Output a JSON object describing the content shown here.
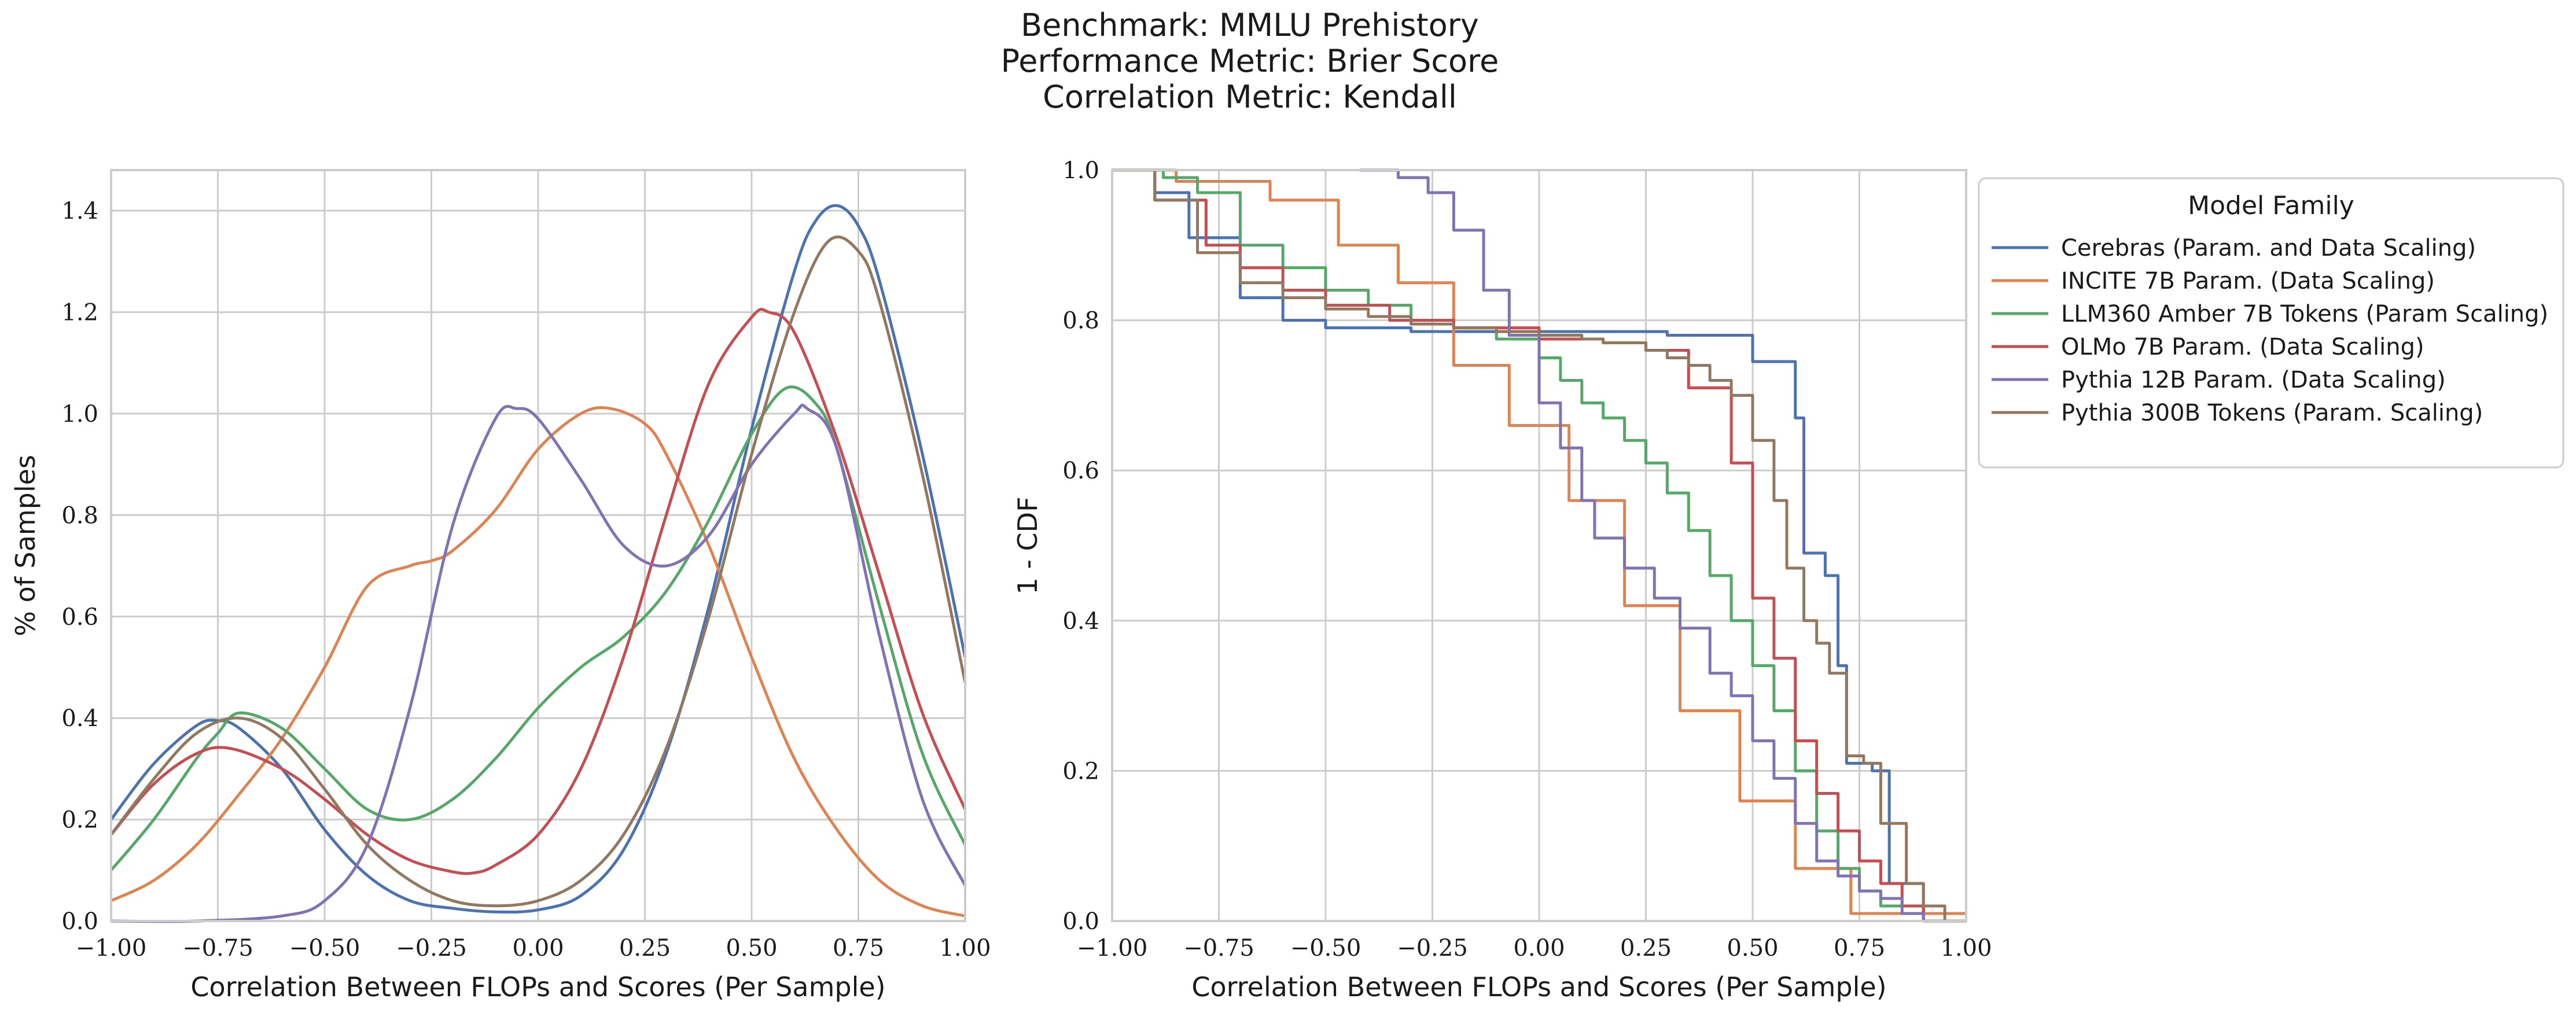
{
  "title_lines": [
    "Benchmark: MMLU Prehistory",
    "Performance Metric: Brier Score",
    "Correlation Metric: Kendall"
  ],
  "chart_data": [
    {
      "type": "line",
      "xlabel": "Correlation Between FLOPs and Scores (Per Sample)",
      "ylabel": "% of Samples",
      "xlim": [
        -1.0,
        1.0
      ],
      "ylim": [
        0.0,
        1.48
      ],
      "xticks": [
        "−1.00",
        "−0.75",
        "−0.50",
        "−0.25",
        "0.00",
        "0.25",
        "0.50",
        "0.75",
        "1.00"
      ],
      "yticks": [
        "0.0",
        "0.2",
        "0.4",
        "0.6",
        "0.8",
        "1.0",
        "1.2",
        "1.4"
      ],
      "grid": true,
      "series": [
        {
          "name": "Cerebras (Param. and Data Scaling)",
          "color": "#4c72b0",
          "x": [
            -1.0,
            -0.9,
            -0.8,
            -0.75,
            -0.7,
            -0.6,
            -0.5,
            -0.4,
            -0.3,
            -0.2,
            -0.1,
            0.0,
            0.1,
            0.2,
            0.3,
            0.4,
            0.5,
            0.6,
            0.65,
            0.7,
            0.75,
            0.8,
            0.9,
            1.0
          ],
          "y": [
            0.2,
            0.31,
            0.385,
            0.395,
            0.38,
            0.3,
            0.18,
            0.09,
            0.04,
            0.025,
            0.018,
            0.022,
            0.05,
            0.14,
            0.33,
            0.62,
            0.97,
            1.28,
            1.38,
            1.41,
            1.37,
            1.26,
            0.92,
            0.52
          ]
        },
        {
          "name": "INCITE 7B Param. (Data Scaling)",
          "color": "#dd8452",
          "x": [
            -1.0,
            -0.9,
            -0.8,
            -0.7,
            -0.6,
            -0.5,
            -0.4,
            -0.3,
            -0.25,
            -0.2,
            -0.1,
            0.0,
            0.1,
            0.17,
            0.25,
            0.3,
            0.4,
            0.5,
            0.6,
            0.7,
            0.8,
            0.9,
            1.0
          ],
          "y": [
            0.04,
            0.08,
            0.15,
            0.25,
            0.36,
            0.5,
            0.66,
            0.7,
            0.71,
            0.73,
            0.81,
            0.93,
            1.0,
            1.01,
            0.98,
            0.92,
            0.74,
            0.52,
            0.32,
            0.18,
            0.08,
            0.03,
            0.01
          ]
        },
        {
          "name": "LLM360 Amber 7B Tokens (Param Scaling)",
          "color": "#55a868",
          "x": [
            -1.0,
            -0.9,
            -0.8,
            -0.75,
            -0.7,
            -0.6,
            -0.5,
            -0.4,
            -0.3,
            -0.2,
            -0.1,
            0.0,
            0.1,
            0.2,
            0.3,
            0.4,
            0.5,
            0.58,
            0.65,
            0.7,
            0.8,
            0.9,
            1.0
          ],
          "y": [
            0.1,
            0.2,
            0.32,
            0.37,
            0.41,
            0.38,
            0.3,
            0.22,
            0.2,
            0.24,
            0.32,
            0.42,
            0.5,
            0.56,
            0.65,
            0.79,
            0.96,
            1.05,
            1.02,
            0.93,
            0.62,
            0.33,
            0.15
          ]
        },
        {
          "name": "OLMo 7B Param. (Data Scaling)",
          "color": "#c44e52",
          "x": [
            -1.0,
            -0.9,
            -0.8,
            -0.72,
            -0.6,
            -0.5,
            -0.4,
            -0.3,
            -0.2,
            -0.15,
            -0.1,
            0.0,
            0.1,
            0.2,
            0.3,
            0.4,
            0.5,
            0.54,
            0.6,
            0.7,
            0.8,
            0.9,
            1.0
          ],
          "y": [
            0.17,
            0.27,
            0.33,
            0.34,
            0.3,
            0.24,
            0.17,
            0.12,
            0.097,
            0.095,
            0.11,
            0.17,
            0.3,
            0.52,
            0.8,
            1.06,
            1.19,
            1.2,
            1.16,
            0.95,
            0.68,
            0.41,
            0.22
          ]
        },
        {
          "name": "Pythia 12B Param. (Data Scaling)",
          "color": "#8172b3",
          "x": [
            -1.0,
            -0.8,
            -0.6,
            -0.5,
            -0.4,
            -0.3,
            -0.2,
            -0.1,
            -0.05,
            0.0,
            0.1,
            0.2,
            0.3,
            0.4,
            0.5,
            0.6,
            0.63,
            0.7,
            0.8,
            0.9,
            1.0
          ],
          "y": [
            0.0,
            0.0,
            0.01,
            0.04,
            0.15,
            0.42,
            0.78,
            0.99,
            1.01,
            0.99,
            0.87,
            0.74,
            0.7,
            0.76,
            0.9,
            1.0,
            1.01,
            0.93,
            0.56,
            0.24,
            0.07
          ]
        },
        {
          "name": "Pythia 300B Tokens (Param. Scaling)",
          "color": "#937860",
          "x": [
            -1.0,
            -0.9,
            -0.8,
            -0.7,
            -0.6,
            -0.5,
            -0.4,
            -0.3,
            -0.2,
            -0.1,
            0.0,
            0.1,
            0.2,
            0.3,
            0.4,
            0.5,
            0.6,
            0.68,
            0.75,
            0.8,
            0.9,
            1.0
          ],
          "y": [
            0.17,
            0.28,
            0.37,
            0.4,
            0.36,
            0.26,
            0.15,
            0.08,
            0.04,
            0.03,
            0.04,
            0.08,
            0.17,
            0.34,
            0.6,
            0.92,
            1.2,
            1.34,
            1.32,
            1.22,
            0.88,
            0.47
          ]
        }
      ]
    },
    {
      "type": "line",
      "xlabel": "Correlation Between FLOPs and Scores (Per Sample)",
      "ylabel": "1 - CDF",
      "xlim": [
        -1.0,
        1.0
      ],
      "ylim": [
        0.0,
        1.0
      ],
      "xticks": [
        "−1.00",
        "−0.75",
        "−0.50",
        "−0.25",
        "0.00",
        "0.25",
        "0.50",
        "0.75",
        "1.00"
      ],
      "yticks": [
        "0.0",
        "0.2",
        "0.4",
        "0.6",
        "0.8",
        "1.0"
      ],
      "grid": true,
      "step": true,
      "legend": {
        "title": "Model Family",
        "position": "outside upper right"
      },
      "series": [
        {
          "name": "Cerebras (Param. and Data Scaling)",
          "color": "#4c72b0",
          "x": [
            -1.0,
            -0.9,
            -0.82,
            -0.7,
            -0.6,
            -0.5,
            -0.3,
            0.0,
            0.3,
            0.5,
            0.6,
            0.62,
            0.67,
            0.7,
            0.72,
            0.78,
            0.82,
            0.9
          ],
          "y": [
            1.0,
            0.97,
            0.91,
            0.83,
            0.8,
            0.79,
            0.785,
            0.785,
            0.78,
            0.745,
            0.67,
            0.49,
            0.46,
            0.34,
            0.21,
            0.2,
            0.05,
            0.0
          ]
        },
        {
          "name": "INCITE 7B Param. (Data Scaling)",
          "color": "#dd8452",
          "x": [
            -1.0,
            -0.85,
            -0.63,
            -0.47,
            -0.33,
            -0.2,
            -0.07,
            0.07,
            0.2,
            0.33,
            0.47,
            0.6,
            0.73
          ],
          "y": [
            1.0,
            0.985,
            0.96,
            0.9,
            0.85,
            0.74,
            0.66,
            0.56,
            0.42,
            0.28,
            0.16,
            0.07,
            0.01
          ]
        },
        {
          "name": "LLM360 Amber 7B Tokens (Param Scaling)",
          "color": "#55a868",
          "x": [
            -1.0,
            -0.88,
            -0.8,
            -0.7,
            -0.6,
            -0.5,
            -0.4,
            -0.3,
            -0.2,
            -0.1,
            0.0,
            0.05,
            0.1,
            0.15,
            0.2,
            0.25,
            0.3,
            0.35,
            0.4,
            0.45,
            0.5,
            0.55,
            0.6,
            0.65,
            0.7,
            0.75,
            0.8,
            0.9
          ],
          "y": [
            1.0,
            0.99,
            0.97,
            0.9,
            0.87,
            0.84,
            0.82,
            0.8,
            0.79,
            0.775,
            0.75,
            0.72,
            0.69,
            0.67,
            0.64,
            0.61,
            0.57,
            0.52,
            0.46,
            0.4,
            0.34,
            0.28,
            0.2,
            0.12,
            0.07,
            0.04,
            0.02,
            0.0
          ]
        },
        {
          "name": "OLMo 7B Param. (Data Scaling)",
          "color": "#c44e52",
          "x": [
            -1.0,
            -0.9,
            -0.78,
            -0.7,
            -0.6,
            -0.5,
            -0.35,
            -0.2,
            0.0,
            0.15,
            0.25,
            0.35,
            0.45,
            0.5,
            0.55,
            0.6,
            0.65,
            0.7,
            0.75,
            0.8,
            0.85,
            0.9
          ],
          "y": [
            1.0,
            0.96,
            0.9,
            0.87,
            0.84,
            0.82,
            0.8,
            0.79,
            0.775,
            0.77,
            0.76,
            0.71,
            0.61,
            0.43,
            0.35,
            0.24,
            0.17,
            0.12,
            0.08,
            0.05,
            0.02,
            0.0
          ]
        },
        {
          "name": "Pythia 12B Param. (Data Scaling)",
          "color": "#8172b3",
          "x": [
            -0.42,
            -0.33,
            -0.26,
            -0.2,
            -0.13,
            -0.07,
            0.0,
            0.05,
            0.1,
            0.13,
            0.2,
            0.27,
            0.33,
            0.4,
            0.45,
            0.5,
            0.55,
            0.6,
            0.65,
            0.7,
            0.75,
            0.8,
            0.85,
            0.9
          ],
          "y": [
            1.0,
            0.99,
            0.97,
            0.92,
            0.84,
            0.78,
            0.69,
            0.63,
            0.56,
            0.51,
            0.47,
            0.43,
            0.39,
            0.33,
            0.3,
            0.24,
            0.19,
            0.13,
            0.08,
            0.06,
            0.04,
            0.03,
            0.01,
            0.0
          ]
        },
        {
          "name": "Pythia 300B Tokens (Param. Scaling)",
          "color": "#937860",
          "x": [
            -1.0,
            -0.9,
            -0.8,
            -0.7,
            -0.6,
            -0.5,
            -0.4,
            -0.3,
            -0.2,
            -0.1,
            0.0,
            0.1,
            0.15,
            0.2,
            0.25,
            0.3,
            0.35,
            0.4,
            0.45,
            0.5,
            0.55,
            0.58,
            0.62,
            0.65,
            0.68,
            0.72,
            0.76,
            0.8,
            0.86,
            0.9,
            0.95
          ],
          "y": [
            1.0,
            0.96,
            0.89,
            0.85,
            0.83,
            0.815,
            0.805,
            0.795,
            0.79,
            0.785,
            0.78,
            0.775,
            0.77,
            0.77,
            0.76,
            0.75,
            0.74,
            0.72,
            0.7,
            0.64,
            0.56,
            0.47,
            0.4,
            0.37,
            0.33,
            0.22,
            0.21,
            0.13,
            0.05,
            0.02,
            0.0
          ]
        }
      ]
    }
  ]
}
